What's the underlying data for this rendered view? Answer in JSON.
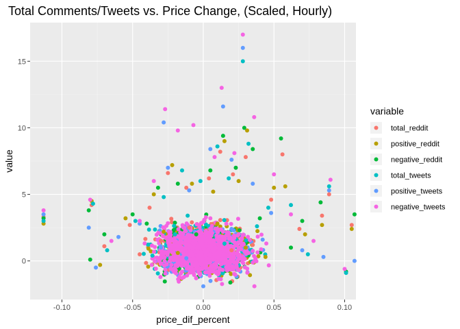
{
  "chart_data": {
    "type": "scatter",
    "title": "Total Comments/Tweets vs. Price Change, (Scaled, Hourly)",
    "xlabel": "price_dif_percent",
    "ylabel": "value",
    "xlim": [
      -0.1225,
      0.108
    ],
    "ylim": [
      -2.9,
      17.9
    ],
    "x_ticks": [
      -0.1,
      -0.05,
      0.0,
      0.05,
      0.1
    ],
    "x_tick_labels": [
      "-0.10",
      "-0.05",
      "0.00",
      "0.05",
      "0.10"
    ],
    "y_ticks": [
      0,
      5,
      10,
      15
    ],
    "y_tick_labels": [
      "0",
      "5",
      "10",
      "15"
    ],
    "grid": true,
    "legend": {
      "title": "variable",
      "placement": "right"
    },
    "series": [
      {
        "name": "total_reddit",
        "color": "#F8766D",
        "points": [
          [
            -0.113,
            3.3
          ],
          [
            -0.079,
            4.2
          ],
          [
            -0.07,
            1.1
          ],
          [
            -0.052,
            2.7
          ],
          [
            -0.038,
            4.0
          ],
          [
            -0.025,
            6.6
          ],
          [
            -0.012,
            5.5
          ],
          [
            0.004,
            6.2
          ],
          [
            0.012,
            8.2
          ],
          [
            0.021,
            6.5
          ],
          [
            0.03,
            7.8
          ],
          [
            0.048,
            4.6
          ],
          [
            0.056,
            8.0
          ],
          [
            0.068,
            2.4
          ],
          [
            0.084,
            3.4
          ],
          [
            0.089,
            5.0
          ],
          [
            0.105,
            2.7
          ],
          [
            -0.03,
            1.5
          ],
          [
            0.02,
            0.8
          ],
          [
            -0.01,
            2.5
          ],
          [
            0.035,
            1.2
          ],
          [
            -0.045,
            0.5
          ]
        ]
      },
      {
        "name": "positive_reddit",
        "color": "#B79F00",
        "points": [
          [
            -0.113,
            2.8
          ],
          [
            -0.079,
            4.5
          ],
          [
            -0.073,
            -0.3
          ],
          [
            -0.055,
            3.2
          ],
          [
            -0.035,
            5.0
          ],
          [
            -0.022,
            7.2
          ],
          [
            -0.008,
            5.8
          ],
          [
            0.007,
            5.2
          ],
          [
            0.015,
            9.0
          ],
          [
            0.025,
            6.0
          ],
          [
            0.031,
            9.8
          ],
          [
            0.05,
            5.5
          ],
          [
            0.058,
            5.6
          ],
          [
            0.072,
            2.0
          ],
          [
            0.084,
            2.7
          ],
          [
            0.105,
            2.4
          ],
          [
            -0.028,
            2.2
          ],
          [
            0.03,
            1.0
          ],
          [
            0.01,
            2.8
          ],
          [
            -0.018,
            0.6
          ],
          [
            0.044,
            0.3
          ]
        ]
      },
      {
        "name": "negative_reddit",
        "color": "#00BA38",
        "points": [
          [
            -0.113,
            3.2
          ],
          [
            -0.081,
            3.8
          ],
          [
            -0.08,
            0.1
          ],
          [
            -0.07,
            2.0
          ],
          [
            -0.05,
            3.5
          ],
          [
            -0.032,
            5.5
          ],
          [
            -0.018,
            5.8
          ],
          [
            0.005,
            6.8
          ],
          [
            0.014,
            9.4
          ],
          [
            0.023,
            7.0
          ],
          [
            0.029,
            10.0
          ],
          [
            0.035,
            8.4
          ],
          [
            0.055,
            9.2
          ],
          [
            0.07,
            3.0
          ],
          [
            0.083,
            4.4
          ],
          [
            0.101,
            -0.8
          ],
          [
            0.107,
            3.5
          ],
          [
            -0.04,
            2.8
          ],
          [
            0.04,
            3.2
          ],
          [
            -0.005,
            2.0
          ],
          [
            0.062,
            1.0
          ]
        ]
      },
      {
        "name": "total_tweets",
        "color": "#00BFC4",
        "points": [
          [
            -0.113,
            3.0
          ],
          [
            -0.078,
            4.3
          ],
          [
            -0.068,
            0.8
          ],
          [
            -0.048,
            3.0
          ],
          [
            -0.028,
            4.8
          ],
          [
            -0.015,
            6.8
          ],
          [
            -0.002,
            6.0
          ],
          [
            0.01,
            8.6
          ],
          [
            0.018,
            6.2
          ],
          [
            0.028,
            15.0
          ],
          [
            0.032,
            8.8
          ],
          [
            0.046,
            4.0
          ],
          [
            0.062,
            4.2
          ],
          [
            0.074,
            0.5
          ],
          [
            0.089,
            5.6
          ],
          [
            0.101,
            -0.9
          ],
          [
            -0.02,
            2.0
          ],
          [
            0.015,
            1.3
          ],
          [
            0.038,
            2.6
          ],
          [
            -0.036,
            0.4
          ]
        ]
      },
      {
        "name": "positive_tweets",
        "color": "#619CFF",
        "points": [
          [
            -0.113,
            3.5
          ],
          [
            -0.081,
            2.5
          ],
          [
            -0.076,
            -0.5
          ],
          [
            -0.06,
            1.8
          ],
          [
            -0.045,
            2.8
          ],
          [
            -0.028,
            10.4
          ],
          [
            -0.025,
            7.0
          ],
          [
            -0.01,
            5.3
          ],
          [
            0.005,
            8.4
          ],
          [
            0.014,
            11.6
          ],
          [
            0.02,
            7.6
          ],
          [
            0.028,
            16.0
          ],
          [
            0.035,
            5.8
          ],
          [
            0.048,
            3.6
          ],
          [
            0.07,
            0.8
          ],
          [
            0.085,
            0.3
          ],
          [
            0.089,
            5.3
          ],
          [
            0.107,
            0.0
          ],
          [
            -0.03,
            1.0
          ],
          [
            0.02,
            2.4
          ],
          [
            -0.012,
            0.2
          ],
          [
            0.042,
            1.6
          ],
          [
            0.0,
            -1.9
          ]
        ]
      },
      {
        "name": "negative_tweets",
        "color": "#F564E3",
        "points": [
          [
            -0.113,
            3.8
          ],
          [
            -0.08,
            4.6
          ],
          [
            -0.065,
            1.5
          ],
          [
            -0.045,
            3.0
          ],
          [
            -0.035,
            6.0
          ],
          [
            -0.027,
            11.4
          ],
          [
            -0.018,
            9.8
          ],
          [
            -0.007,
            10.2
          ],
          [
            0.008,
            7.8
          ],
          [
            0.013,
            13.0
          ],
          [
            0.022,
            8.1
          ],
          [
            0.028,
            17.0
          ],
          [
            0.036,
            10.8
          ],
          [
            0.05,
            6.5
          ],
          [
            0.062,
            3.5
          ],
          [
            0.078,
            1.5
          ],
          [
            0.09,
            6.1
          ],
          [
            0.1,
            -0.6
          ],
          [
            -0.025,
            1.8
          ],
          [
            0.025,
            1.4
          ],
          [
            0.005,
            3.2
          ],
          [
            -0.015,
            -0.8
          ],
          [
            0.032,
            0.6
          ]
        ]
      }
    ],
    "dense_cluster": {
      "x_center": 0.0,
      "x_spread": 0.04,
      "y_center": 0.8,
      "y_spread": 2.6,
      "dominant_color": "#F564E3"
    }
  }
}
